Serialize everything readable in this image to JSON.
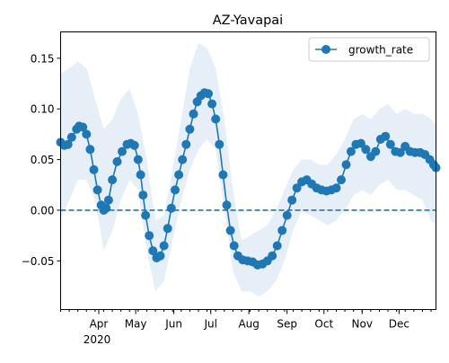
{
  "chart_data": {
    "type": "line",
    "title": "AZ-Yavapai",
    "xlabel": "",
    "ylabel": "",
    "x_range": [
      "2020-03-01",
      "2020-12-31"
    ],
    "ylim": [
      -0.098,
      0.176
    ],
    "yticks": [
      -0.05,
      0.0,
      0.05,
      0.1,
      0.15
    ],
    "ytick_labels": [
      "−0.05",
      "0.00",
      "0.05",
      "0.10",
      "0.15"
    ],
    "xticks": [
      {
        "date": "2020-04-01",
        "label": "Apr"
      },
      {
        "date": "2020-05-01",
        "label": "May"
      },
      {
        "date": "2020-06-01",
        "label": "Jun"
      },
      {
        "date": "2020-07-01",
        "label": "Jul"
      },
      {
        "date": "2020-08-01",
        "label": "Aug"
      },
      {
        "date": "2020-09-01",
        "label": "Sep"
      },
      {
        "date": "2020-10-01",
        "label": "Oct"
      },
      {
        "date": "2020-11-01",
        "label": "Nov"
      },
      {
        "date": "2020-12-01",
        "label": "Dec"
      }
    ],
    "year_label": "2020",
    "grid": false,
    "legend": {
      "position": "top-right",
      "entries": [
        "growth_rate"
      ]
    },
    "reference_line": {
      "y": 0.0,
      "style": "dashed"
    },
    "series": [
      {
        "name": "growth_rate",
        "color": "#1f77b4",
        "marker": "circle",
        "band_color": "#dce8f5",
        "points": [
          [
            "2020-03-01",
            0.067
          ],
          [
            "2020-03-04",
            0.064
          ],
          [
            "2020-03-07",
            0.065
          ],
          [
            "2020-03-10",
            0.072
          ],
          [
            "2020-03-14",
            0.08
          ],
          [
            "2020-03-16",
            0.083
          ],
          [
            "2020-03-19",
            0.082
          ],
          [
            "2020-03-22",
            0.075
          ],
          [
            "2020-03-25",
            0.06
          ],
          [
            "2020-03-28",
            0.04
          ],
          [
            "2020-03-31",
            0.02
          ],
          [
            "2020-04-03",
            0.005
          ],
          [
            "2020-04-05",
            0.0
          ],
          [
            "2020-04-07",
            0.002
          ],
          [
            "2020-04-09",
            0.01
          ],
          [
            "2020-04-12",
            0.03
          ],
          [
            "2020-04-16",
            0.048
          ],
          [
            "2020-04-20",
            0.058
          ],
          [
            "2020-04-24",
            0.065
          ],
          [
            "2020-04-27",
            0.066
          ],
          [
            "2020-04-30",
            0.064
          ],
          [
            "2020-05-03",
            0.05
          ],
          [
            "2020-05-05",
            0.035
          ],
          [
            "2020-05-07",
            0.015
          ],
          [
            "2020-05-09",
            -0.005
          ],
          [
            "2020-05-12",
            -0.025
          ],
          [
            "2020-05-15",
            -0.04
          ],
          [
            "2020-05-18",
            -0.047
          ],
          [
            "2020-05-21",
            -0.045
          ],
          [
            "2020-05-24",
            -0.035
          ],
          [
            "2020-05-27",
            -0.018
          ],
          [
            "2020-05-30",
            0.002
          ],
          [
            "2020-06-02",
            0.02
          ],
          [
            "2020-06-05",
            0.035
          ],
          [
            "2020-06-08",
            0.05
          ],
          [
            "2020-06-11",
            0.065
          ],
          [
            "2020-06-14",
            0.08
          ],
          [
            "2020-06-17",
            0.095
          ],
          [
            "2020-06-20",
            0.107
          ],
          [
            "2020-06-23",
            0.113
          ],
          [
            "2020-06-26",
            0.116
          ],
          [
            "2020-06-29",
            0.115
          ],
          [
            "2020-07-02",
            0.105
          ],
          [
            "2020-07-05",
            0.09
          ],
          [
            "2020-07-08",
            0.065
          ],
          [
            "2020-07-11",
            0.035
          ],
          [
            "2020-07-14",
            0.005
          ],
          [
            "2020-07-17",
            -0.02
          ],
          [
            "2020-07-20",
            -0.035
          ],
          [
            "2020-07-23",
            -0.045
          ],
          [
            "2020-07-27",
            -0.049
          ],
          [
            "2020-07-31",
            -0.05
          ],
          [
            "2020-08-04",
            -0.051
          ],
          [
            "2020-08-08",
            -0.054
          ],
          [
            "2020-08-12",
            -0.053
          ],
          [
            "2020-08-16",
            -0.05
          ],
          [
            "2020-08-20",
            -0.045
          ],
          [
            "2020-08-24",
            -0.035
          ],
          [
            "2020-08-28",
            -0.02
          ],
          [
            "2020-09-01",
            -0.005
          ],
          [
            "2020-09-05",
            0.01
          ],
          [
            "2020-09-09",
            0.022
          ],
          [
            "2020-09-13",
            0.028
          ],
          [
            "2020-09-17",
            0.03
          ],
          [
            "2020-09-21",
            0.026
          ],
          [
            "2020-09-25",
            0.022
          ],
          [
            "2020-09-29",
            0.02
          ],
          [
            "2020-10-03",
            0.019
          ],
          [
            "2020-10-07",
            0.02
          ],
          [
            "2020-10-11",
            0.022
          ],
          [
            "2020-10-15",
            0.03
          ],
          [
            "2020-10-19",
            0.045
          ],
          [
            "2020-10-23",
            0.058
          ],
          [
            "2020-10-27",
            0.065
          ],
          [
            "2020-10-31",
            0.066
          ],
          [
            "2020-11-04",
            0.06
          ],
          [
            "2020-11-08",
            0.053
          ],
          [
            "2020-11-12",
            0.058
          ],
          [
            "2020-11-16",
            0.07
          ],
          [
            "2020-11-20",
            0.073
          ],
          [
            "2020-11-24",
            0.065
          ],
          [
            "2020-11-28",
            0.058
          ],
          [
            "2020-12-02",
            0.057
          ],
          [
            "2020-12-06",
            0.063
          ],
          [
            "2020-12-10",
            0.058
          ],
          [
            "2020-12-14",
            0.057
          ],
          [
            "2020-12-18",
            0.057
          ],
          [
            "2020-12-22",
            0.055
          ],
          [
            "2020-12-26",
            0.05
          ],
          [
            "2020-12-29",
            0.045
          ],
          [
            "2020-12-31",
            0.042
          ]
        ],
        "band": [
          [
            "2020-03-01",
            -0.008,
            0.135
          ],
          [
            "2020-03-08",
            0.01,
            0.14
          ],
          [
            "2020-03-15",
            0.03,
            0.147
          ],
          [
            "2020-03-22",
            0.03,
            0.14
          ],
          [
            "2020-03-29",
            0.01,
            0.11
          ],
          [
            "2020-04-05",
            -0.04,
            0.08
          ],
          [
            "2020-04-12",
            -0.02,
            0.09
          ],
          [
            "2020-04-19",
            0.01,
            0.11
          ],
          [
            "2020-04-26",
            0.03,
            0.12
          ],
          [
            "2020-05-03",
            0.02,
            0.095
          ],
          [
            "2020-05-10",
            -0.04,
            0.05
          ],
          [
            "2020-05-17",
            -0.08,
            -0.01
          ],
          [
            "2020-05-24",
            -0.07,
            -0.005
          ],
          [
            "2020-05-31",
            -0.03,
            0.04
          ],
          [
            "2020-06-07",
            0.01,
            0.09
          ],
          [
            "2020-06-14",
            0.04,
            0.14
          ],
          [
            "2020-06-21",
            0.06,
            0.165
          ],
          [
            "2020-06-28",
            0.07,
            0.16
          ],
          [
            "2020-07-05",
            0.06,
            0.14
          ],
          [
            "2020-07-12",
            0.0,
            0.09
          ],
          [
            "2020-07-19",
            -0.06,
            0.02
          ],
          [
            "2020-07-26",
            -0.08,
            -0.03
          ],
          [
            "2020-08-02",
            -0.08,
            -0.025
          ],
          [
            "2020-08-09",
            -0.085,
            -0.02
          ],
          [
            "2020-08-16",
            -0.08,
            -0.015
          ],
          [
            "2020-08-23",
            -0.07,
            0.0
          ],
          [
            "2020-08-30",
            -0.05,
            0.02
          ],
          [
            "2020-09-06",
            -0.02,
            0.04
          ],
          [
            "2020-09-13",
            0.0,
            0.05
          ],
          [
            "2020-09-20",
            -0.005,
            0.05
          ],
          [
            "2020-09-27",
            -0.01,
            0.045
          ],
          [
            "2020-10-04",
            -0.015,
            0.045
          ],
          [
            "2020-10-11",
            -0.01,
            0.055
          ],
          [
            "2020-10-18",
            0.0,
            0.07
          ],
          [
            "2020-10-25",
            0.015,
            0.09
          ],
          [
            "2020-11-01",
            0.02,
            0.095
          ],
          [
            "2020-11-08",
            0.015,
            0.09
          ],
          [
            "2020-11-15",
            0.025,
            0.1
          ],
          [
            "2020-11-22",
            0.03,
            0.105
          ],
          [
            "2020-11-29",
            0.02,
            0.095
          ],
          [
            "2020-12-06",
            0.02,
            0.1
          ],
          [
            "2020-12-13",
            0.015,
            0.095
          ],
          [
            "2020-12-20",
            0.01,
            0.095
          ],
          [
            "2020-12-27",
            -0.01,
            0.09
          ],
          [
            "2020-12-31",
            -0.015,
            0.085
          ]
        ]
      }
    ]
  }
}
